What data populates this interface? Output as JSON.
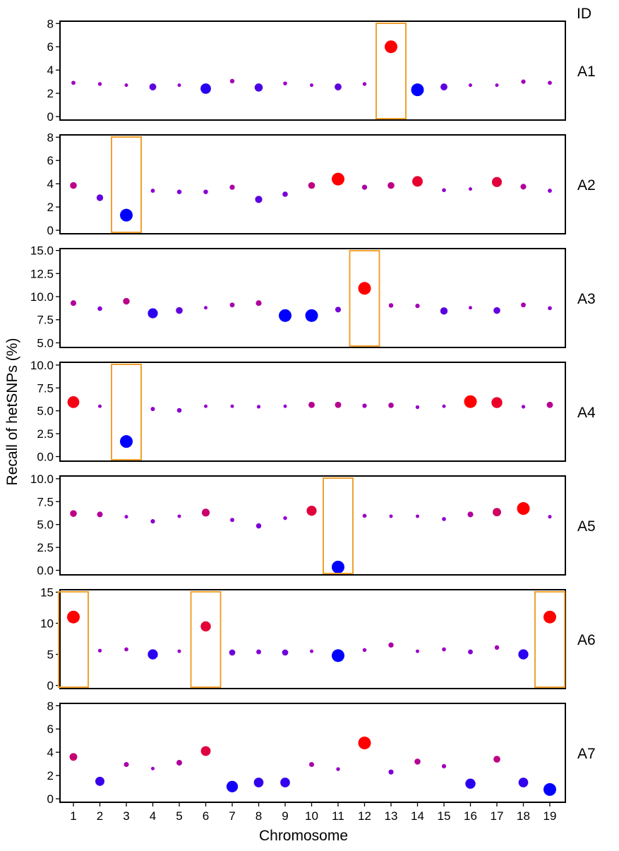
{
  "chart_data": {
    "type": "scatter",
    "xlabel": "Chromosome",
    "ylabel": "Recall of hetSNPs (%)",
    "id_header": "ID",
    "x_ticks": [
      1,
      2,
      3,
      4,
      5,
      6,
      7,
      8,
      9,
      10,
      11,
      12,
      13,
      14,
      15,
      16,
      17,
      18,
      19
    ],
    "legend": "none",
    "grid": false,
    "color_scale": {
      "low": "#0000ff",
      "mid": "#9900cc",
      "high": "#ff0000"
    },
    "highlight_color": "#f0a030",
    "panels": [
      {
        "id": "A1",
        "ylim": [
          -0.3,
          8.2
        ],
        "yticks": [
          "0",
          "2",
          "4",
          "6",
          "8"
        ],
        "ytick_values": [
          0,
          2,
          4,
          6,
          8
        ],
        "values": [
          2.9,
          2.8,
          2.7,
          2.55,
          2.7,
          2.4,
          3.05,
          2.5,
          2.85,
          2.7,
          2.55,
          2.8,
          6.0,
          2.3,
          2.55,
          2.7,
          2.7,
          3.0,
          2.9
        ],
        "highlight": [
          13
        ]
      },
      {
        "id": "A2",
        "ylim": [
          -0.3,
          8.2
        ],
        "yticks": [
          "0",
          "2",
          "4",
          "6",
          "8"
        ],
        "ytick_values": [
          0,
          2,
          4,
          6,
          8
        ],
        "values": [
          3.85,
          2.8,
          1.3,
          3.4,
          3.3,
          3.3,
          3.7,
          2.65,
          3.1,
          3.85,
          4.4,
          3.7,
          3.85,
          4.2,
          3.45,
          3.55,
          4.15,
          3.75,
          3.4
        ],
        "highlight": [
          3
        ]
      },
      {
        "id": "A3",
        "ylim": [
          4.5,
          15.2
        ],
        "yticks": [
          "5.0",
          "7.5",
          "10.0",
          "12.5",
          "15.0"
        ],
        "ytick_values": [
          5.0,
          7.5,
          10.0,
          12.5,
          15.0
        ],
        "values": [
          9.3,
          8.7,
          9.5,
          8.2,
          8.5,
          8.8,
          9.1,
          9.3,
          7.95,
          7.95,
          8.6,
          10.9,
          9.05,
          9.0,
          8.45,
          8.8,
          8.5,
          9.1,
          8.75
        ],
        "highlight": [
          12
        ]
      },
      {
        "id": "A4",
        "ylim": [
          -0.5,
          10.3
        ],
        "yticks": [
          "0.0",
          "2.5",
          "5.0",
          "7.5",
          "10.0"
        ],
        "ytick_values": [
          0,
          2.5,
          5.0,
          7.5,
          10.0
        ],
        "values": [
          5.95,
          5.5,
          1.65,
          5.2,
          5.05,
          5.5,
          5.5,
          5.45,
          5.5,
          5.65,
          5.65,
          5.55,
          5.6,
          5.4,
          5.5,
          6.0,
          5.9,
          5.45,
          5.65
        ],
        "highlight": [
          3
        ]
      },
      {
        "id": "A5",
        "ylim": [
          -0.5,
          10.3
        ],
        "yticks": [
          "0.0",
          "2.5",
          "5.0",
          "7.5",
          "10.0"
        ],
        "ytick_values": [
          0,
          2.5,
          5.0,
          7.5,
          10.0
        ],
        "values": [
          6.2,
          6.1,
          5.85,
          5.35,
          5.9,
          6.3,
          5.5,
          4.85,
          5.7,
          6.5,
          0.35,
          5.95,
          5.9,
          5.9,
          5.6,
          6.1,
          6.35,
          6.75,
          5.85
        ],
        "highlight": [
          11
        ]
      },
      {
        "id": "A6",
        "ylim": [
          -0.5,
          15.4
        ],
        "yticks": [
          "0",
          "5",
          "10",
          "15"
        ],
        "ytick_values": [
          0,
          5,
          10,
          15
        ],
        "values": [
          11.0,
          5.6,
          5.8,
          5.0,
          5.5,
          9.5,
          5.3,
          5.4,
          5.3,
          5.5,
          4.8,
          5.7,
          6.5,
          5.5,
          5.8,
          5.4,
          6.1,
          5.0,
          11.0
        ],
        "highlight": [
          1,
          6,
          19
        ]
      },
      {
        "id": "A7",
        "ylim": [
          -0.3,
          8.2
        ],
        "yticks": [
          "0",
          "2",
          "4",
          "6",
          "8"
        ],
        "ytick_values": [
          0,
          2,
          4,
          6,
          8
        ],
        "values": [
          3.6,
          1.5,
          2.95,
          2.6,
          3.1,
          4.1,
          1.05,
          1.4,
          1.4,
          2.95,
          2.55,
          4.8,
          2.3,
          3.2,
          2.8,
          1.3,
          3.4,
          1.4,
          0.8
        ],
        "highlight": []
      }
    ]
  }
}
